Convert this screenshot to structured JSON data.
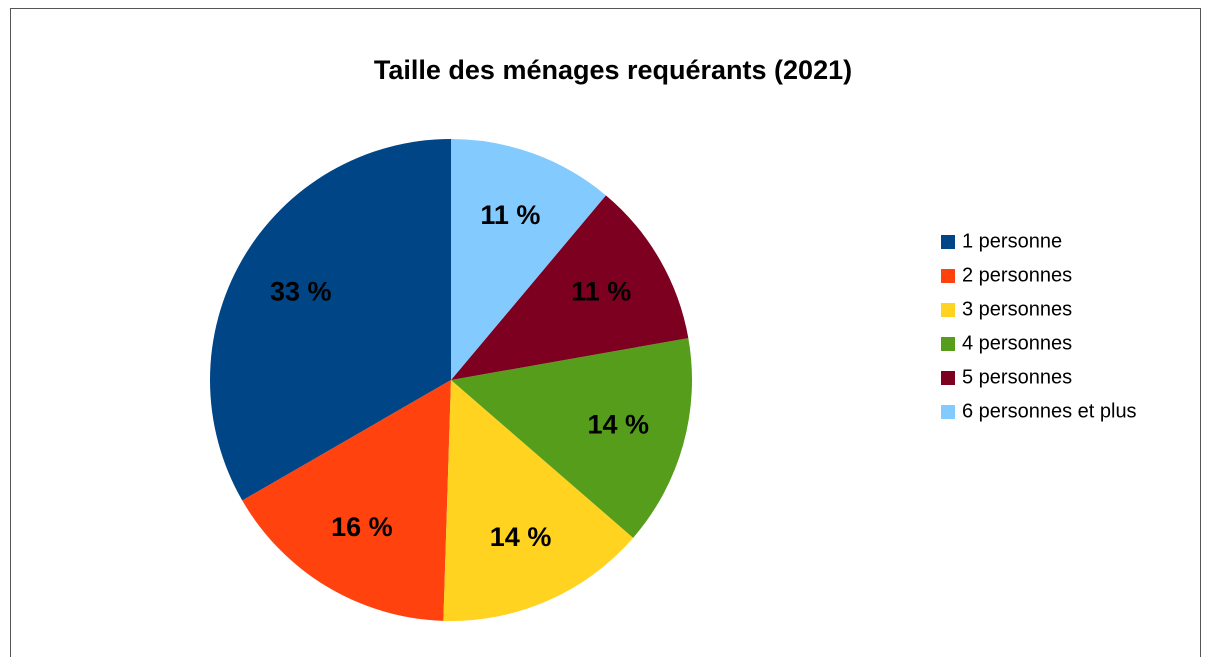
{
  "chart_data": {
    "type": "pie",
    "title": "Taille des ménages requérants (2021)",
    "categories": [
      "1 personne",
      "2 personnes",
      "3 personnes",
      "4 personnes",
      "5 personnes",
      "6 personnes et plus"
    ],
    "values": [
      33,
      16,
      14,
      14,
      11,
      11
    ],
    "value_labels": [
      "33 %",
      "16 %",
      "14 %",
      "14 %",
      "11 %",
      "11 %"
    ],
    "colors": [
      "#004586",
      "#ff420e",
      "#ffd320",
      "#579d1c",
      "#7e0021",
      "#83caff"
    ],
    "legend": "right"
  }
}
